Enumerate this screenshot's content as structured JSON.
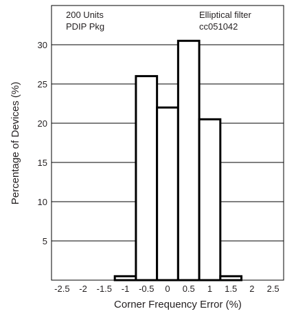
{
  "chart_data": {
    "type": "bar",
    "xlabel": "Corner Frequency Error (%)",
    "ylabel": "Percentage of Devices (%)",
    "xlim": [
      -2.75,
      2.75
    ],
    "ylim": [
      0,
      35
    ],
    "grid": "horizontal",
    "x_ticks": [
      "-2.5",
      "-2",
      "-1.5",
      "-1",
      "-0.5",
      "0",
      "0.5",
      "1",
      "1.5",
      "2",
      "2.5"
    ],
    "x_tick_values": [
      -2.5,
      -2,
      -1.5,
      -1,
      -0.5,
      0,
      0.5,
      1,
      1.5,
      2,
      2.5
    ],
    "y_ticks": [
      "5",
      "10",
      "15",
      "20",
      "25",
      "30"
    ],
    "y_tick_values": [
      5,
      10,
      15,
      20,
      25,
      30
    ],
    "bin_width": 0.5,
    "bins": [
      {
        "center": -1.0,
        "value": 0.5
      },
      {
        "center": -0.5,
        "value": 26
      },
      {
        "center": 0.0,
        "value": 22
      },
      {
        "center": 0.5,
        "value": 30.5
      },
      {
        "center": 1.0,
        "value": 20.5
      },
      {
        "center": 1.5,
        "value": 0.5
      }
    ],
    "annotations_left": [
      "200 Units",
      "PDIP Pkg"
    ],
    "annotations_right": [
      "Elliptical filter",
      "cc051042"
    ],
    "colors": {
      "bar_fill": "#ffffff",
      "bar_stroke": "#000000",
      "grid": "#000000",
      "text": "#231f20"
    }
  }
}
